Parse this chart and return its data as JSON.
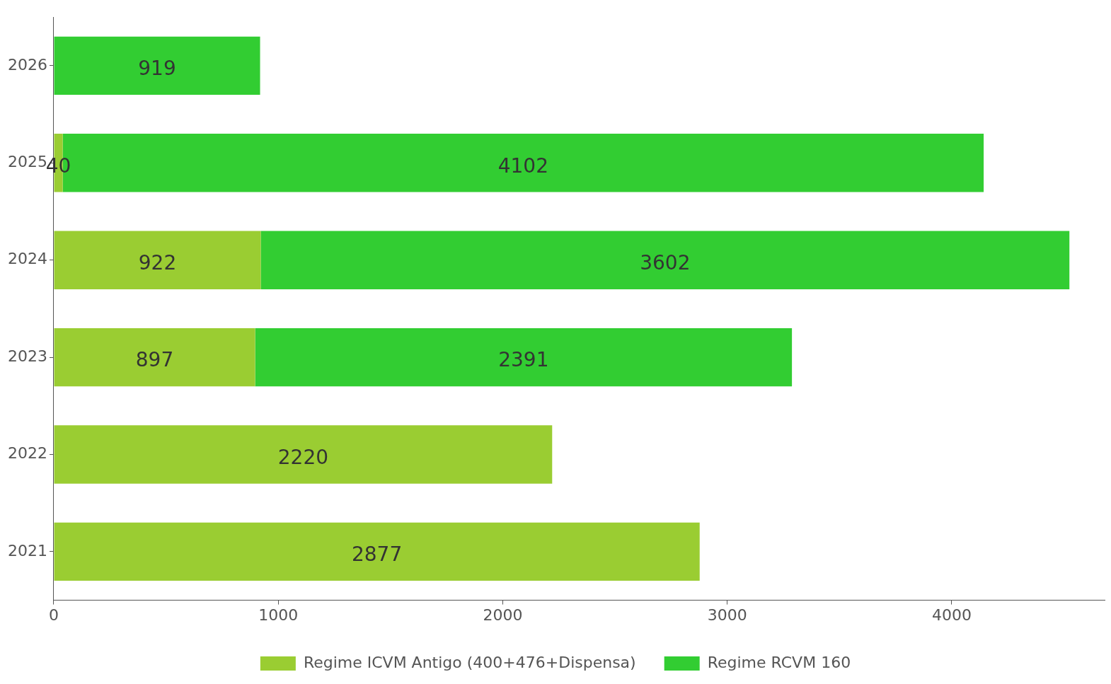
{
  "chart_data": {
    "type": "bar",
    "orientation": "horizontal",
    "stacked": true,
    "categories": [
      "2026",
      "2025",
      "2024",
      "2023",
      "2022",
      "2021"
    ],
    "series": [
      {
        "name": "Regime ICVM Antigo (400+476+Dispensa)",
        "color": "#9acd32",
        "values": [
          null,
          40,
          922,
          897,
          2220,
          2877
        ]
      },
      {
        "name": "Regime RCVM 160",
        "color": "#32cd32",
        "values": [
          919,
          4102,
          3602,
          2391,
          null,
          null
        ]
      }
    ],
    "xlim": [
      0,
      4684
    ],
    "xticks": [
      0,
      1000,
      2000,
      3000,
      4000
    ],
    "data_labels": true,
    "grid": false,
    "legend": "bottom"
  }
}
